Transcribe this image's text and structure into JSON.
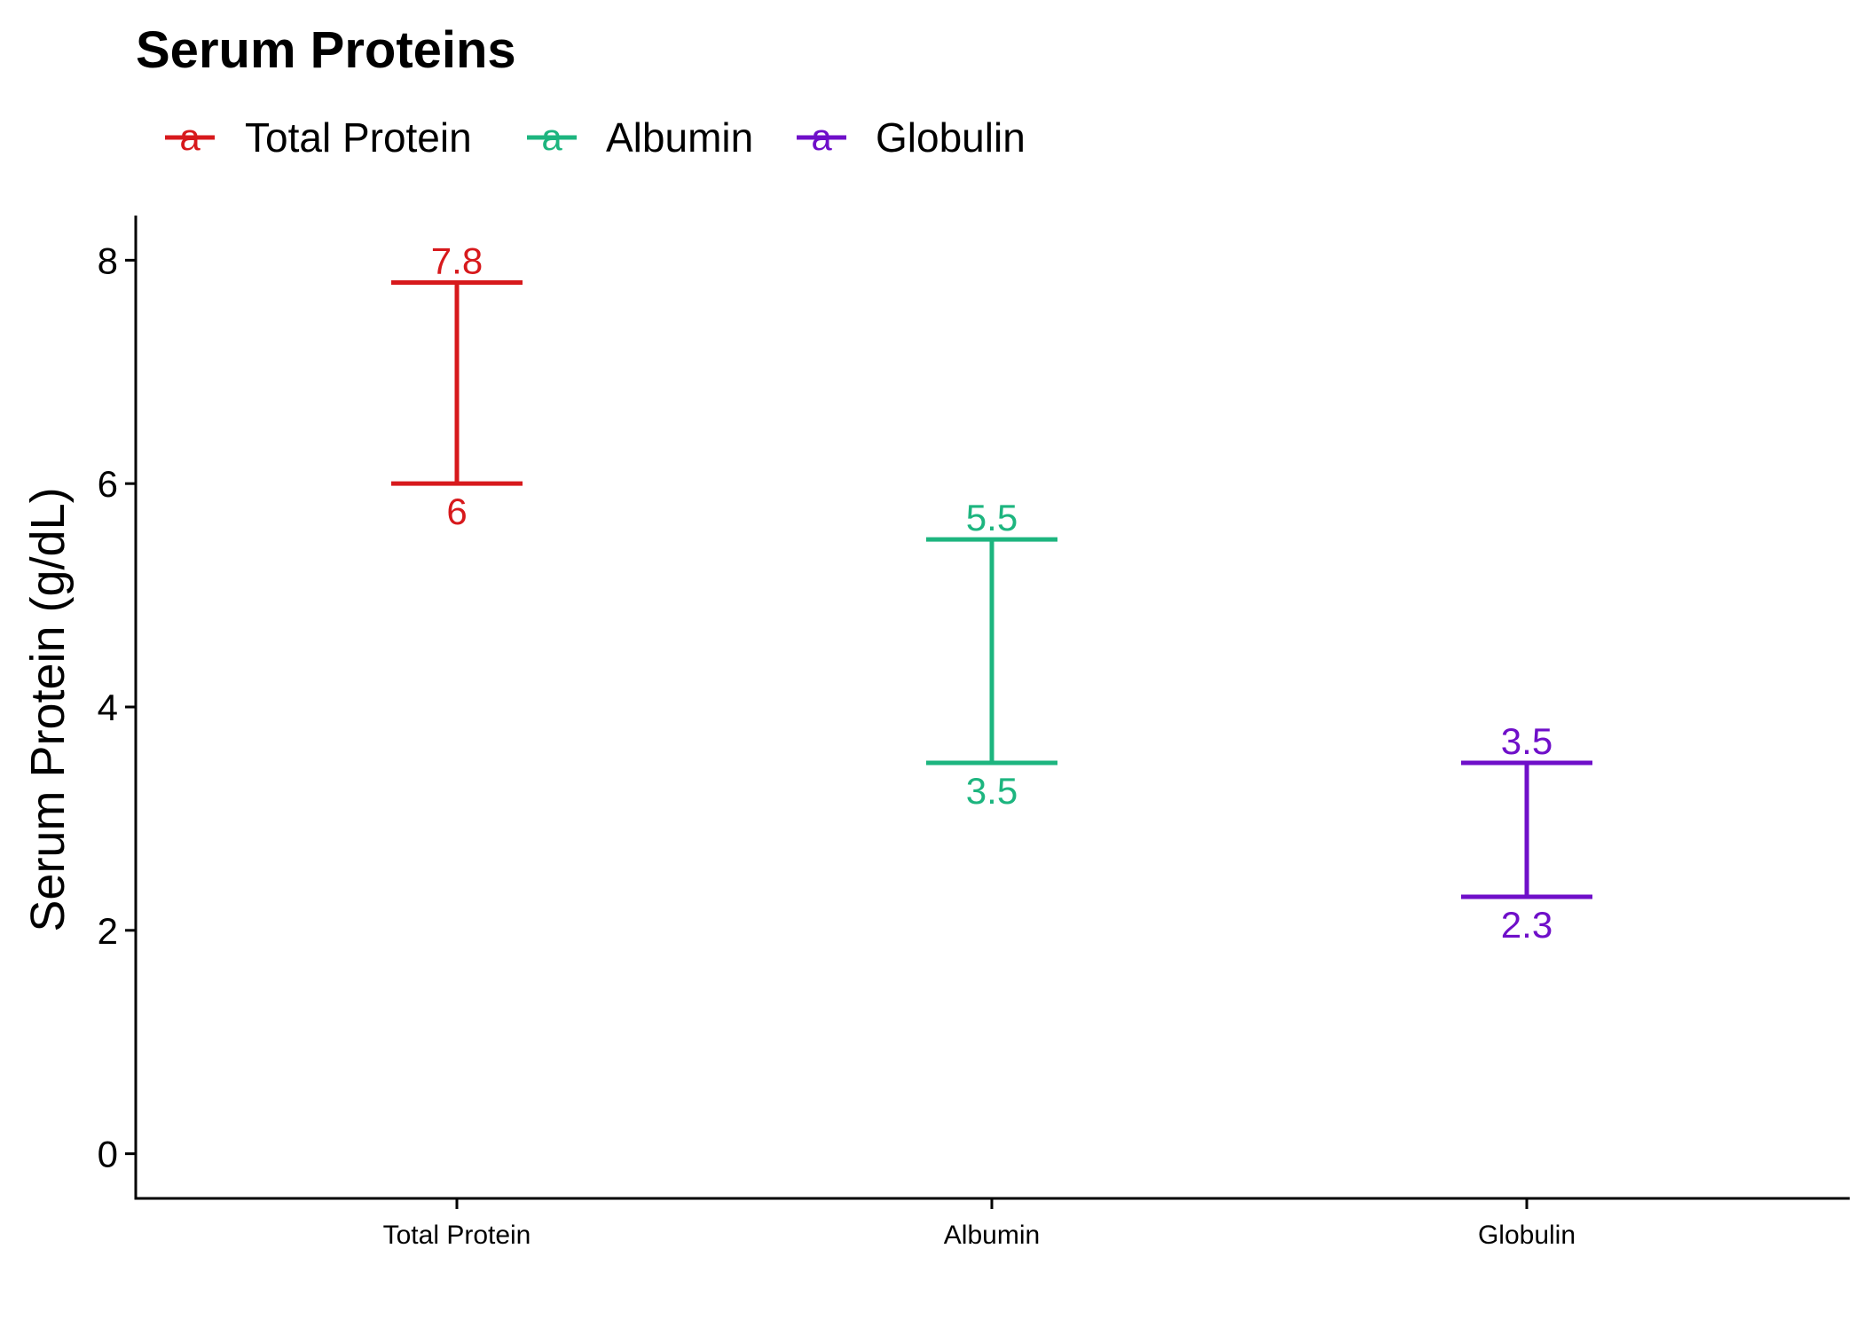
{
  "chart_data": {
    "type": "errorbar",
    "title": "Serum Proteins",
    "xlabel": "",
    "ylabel": "Serum Protein (g/dL)",
    "ylim": [
      -0.4,
      8.4
    ],
    "yticks": [
      0,
      2,
      4,
      6,
      8
    ],
    "categories": [
      "Total Protein",
      "Albumin",
      "Globulin"
    ],
    "series": [
      {
        "name": "Total Protein",
        "category": "Total Protein",
        "low": 6,
        "high": 7.8,
        "low_label": "6",
        "high_label": "7.8",
        "color": "#d7191c"
      },
      {
        "name": "Albumin",
        "category": "Albumin",
        "low": 3.5,
        "high": 5.5,
        "low_label": "3.5",
        "high_label": "5.5",
        "color": "#1db57f"
      },
      {
        "name": "Globulin",
        "category": "Globulin",
        "low": 2.3,
        "high": 3.5,
        "low_label": "2.3",
        "high_label": "3.5",
        "color": "#6f0fc9"
      }
    ],
    "legend": {
      "position": "top-left",
      "key_glyph": "a"
    },
    "grid": false
  }
}
